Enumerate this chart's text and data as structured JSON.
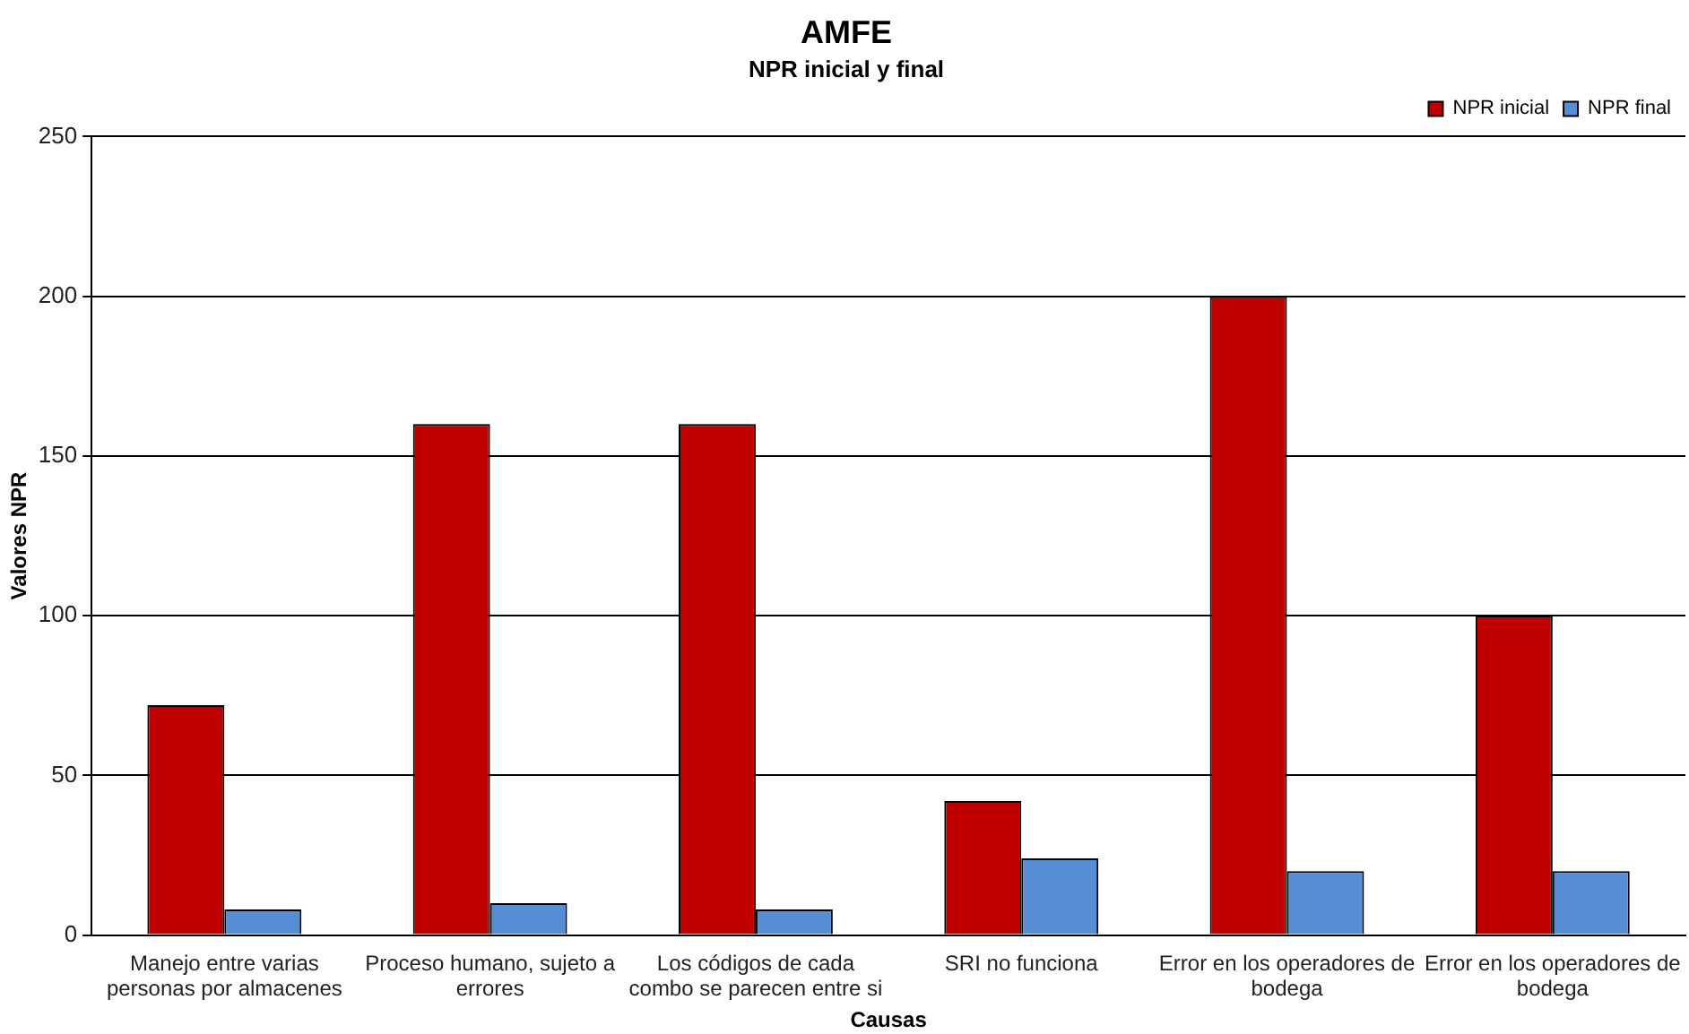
{
  "chart_data": {
    "type": "bar",
    "title": "AMFE",
    "subtitle": "NPR inicial y final",
    "xlabel": "Causas",
    "ylabel": "Valores NPR",
    "categories": [
      "Manejo entre varias personas por almacenes",
      "Proceso humano, sujeto a errores",
      "Los códigos de cada combo se parecen entre si",
      "SRI no funciona",
      "Error en los operadores de bodega",
      "Error en los operadores de bodega"
    ],
    "series": [
      {
        "name": "NPR inicial",
        "color": "#c00000",
        "values": [
          72,
          160,
          160,
          42,
          200,
          100
        ]
      },
      {
        "name": "NPR final",
        "color": "#558ed5",
        "values": [
          8,
          10,
          8,
          24,
          20,
          20
        ]
      }
    ],
    "ylim": [
      0,
      250
    ],
    "yticks": [
      0,
      50,
      100,
      150,
      200,
      250
    ],
    "grid": "y",
    "legend": "top right"
  }
}
